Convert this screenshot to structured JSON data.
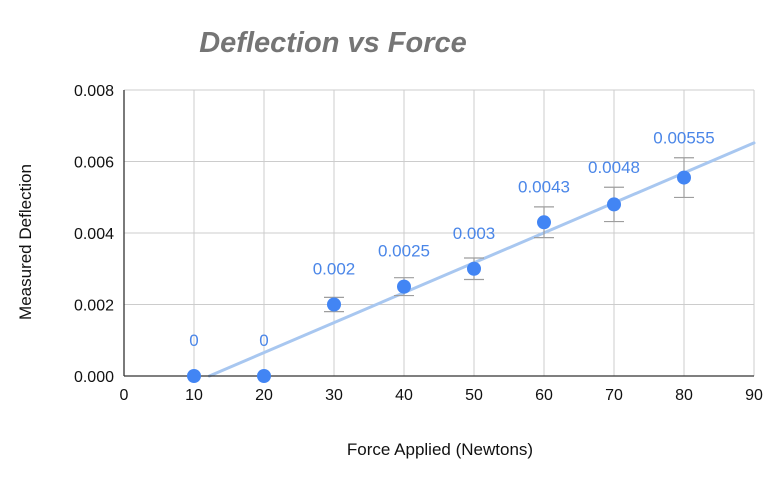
{
  "chart_data": {
    "type": "scatter",
    "title": "Deflection vs Force",
    "xlabel": "Force Applied (Newtons)",
    "ylabel": "Measured Deflection",
    "xlim": [
      0,
      90
    ],
    "ylim": [
      0,
      0.008
    ],
    "x_ticks": [
      "0",
      "10",
      "20",
      "30",
      "40",
      "50",
      "60",
      "70",
      "80",
      "90"
    ],
    "y_ticks": [
      "0.000",
      "0.002",
      "0.004",
      "0.006",
      "0.008"
    ],
    "grid": true,
    "legend": "none",
    "series": [
      {
        "x": [
          10,
          20,
          30,
          40,
          50,
          60,
          70,
          80
        ],
        "y": [
          0,
          0,
          0.002,
          0.0025,
          0.003,
          0.0043,
          0.0048,
          0.00555
        ],
        "labels": [
          "0",
          "0",
          "0.002",
          "0.0025",
          "0.003",
          "0.0043",
          "0.0048",
          "0.00555"
        ],
        "error": [
          0,
          0,
          0.0002,
          0.00025,
          0.0003,
          0.00043,
          0.00048,
          0.000555
        ],
        "color": "#4285f4"
      }
    ],
    "trendline": {
      "type": "linear",
      "color": "#a8c7f0",
      "x_start": 12.2,
      "y_start": 0,
      "x_end": 90,
      "y_end": 0.00652
    }
  }
}
